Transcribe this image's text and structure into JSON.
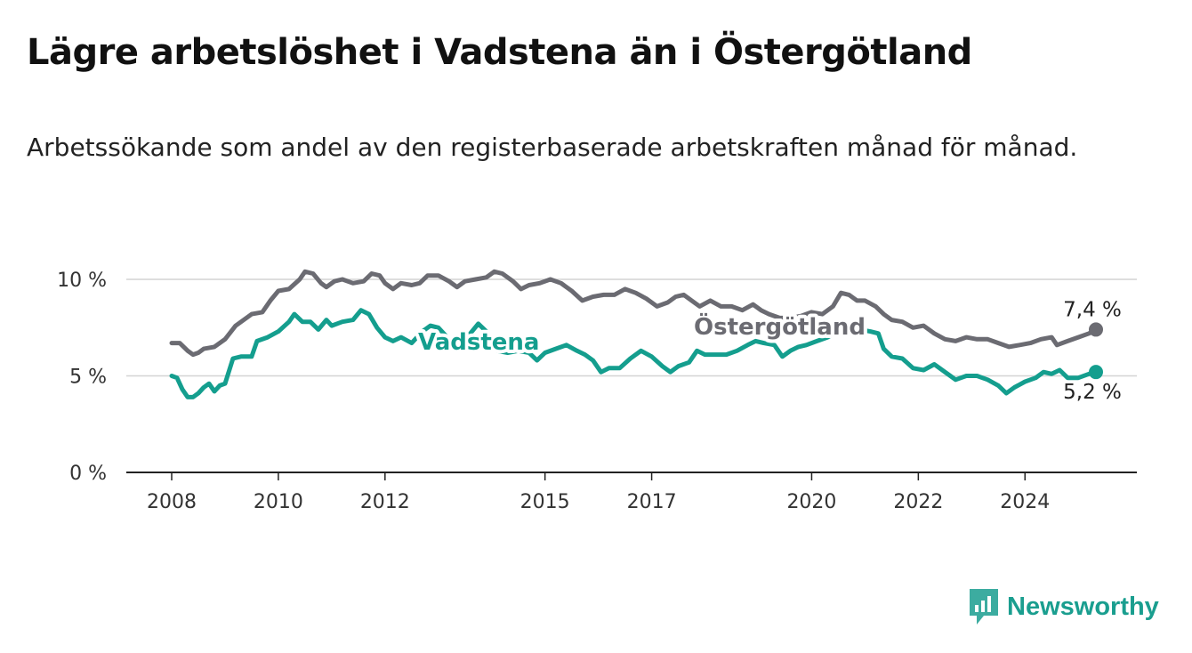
{
  "title": "Lägre arbetslöshet i Vadstena än i Östergötland",
  "subtitle": "Arbetssökande som andel av den registerbaserade arbetskraften månad för månad.",
  "brand": {
    "name": "Newsworthy",
    "icon": "newsworthy-logo-icon",
    "color": "#1a9e8f"
  },
  "chart_data": {
    "type": "line",
    "title": "Lägre arbetslöshet i Vadstena än i Östergötland",
    "xlabel": "",
    "ylabel": "",
    "x_ticks": [
      2008,
      2010,
      2012,
      2015,
      2017,
      2020,
      2022,
      2024
    ],
    "x_tick_labels": [
      "2008",
      "2010",
      "2012",
      "2015",
      "2017",
      "2020",
      "2022",
      "2024"
    ],
    "y_ticks": [
      0,
      5,
      10
    ],
    "y_tick_labels": [
      "0 %",
      "5 %",
      "10 %"
    ],
    "ylim": [
      0,
      10
    ],
    "xlim": [
      2007.6,
      2025.8
    ],
    "grid": "horizontal",
    "series": [
      {
        "name": "Östergötland",
        "color": "#6b6b72",
        "end_label": "7,4 %",
        "points": [
          [
            2008.0,
            6.7
          ],
          [
            2008.15,
            6.7
          ],
          [
            2008.3,
            6.3
          ],
          [
            2008.4,
            6.1
          ],
          [
            2008.5,
            6.2
          ],
          [
            2008.6,
            6.4
          ],
          [
            2008.8,
            6.5
          ],
          [
            2009.0,
            6.9
          ],
          [
            2009.2,
            7.6
          ],
          [
            2009.5,
            8.2
          ],
          [
            2009.7,
            8.3
          ],
          [
            2009.85,
            8.9
          ],
          [
            2010.0,
            9.4
          ],
          [
            2010.2,
            9.5
          ],
          [
            2010.4,
            10.0
          ],
          [
            2010.5,
            10.4
          ],
          [
            2010.65,
            10.3
          ],
          [
            2010.8,
            9.8
          ],
          [
            2010.9,
            9.6
          ],
          [
            2011.05,
            9.9
          ],
          [
            2011.2,
            10.0
          ],
          [
            2011.4,
            9.8
          ],
          [
            2011.6,
            9.9
          ],
          [
            2011.75,
            10.3
          ],
          [
            2011.9,
            10.2
          ],
          [
            2012.0,
            9.8
          ],
          [
            2012.15,
            9.5
          ],
          [
            2012.3,
            9.8
          ],
          [
            2012.5,
            9.7
          ],
          [
            2012.65,
            9.8
          ],
          [
            2012.8,
            10.2
          ],
          [
            2013.0,
            10.2
          ],
          [
            2013.2,
            9.9
          ],
          [
            2013.35,
            9.6
          ],
          [
            2013.5,
            9.9
          ],
          [
            2013.7,
            10.0
          ],
          [
            2013.9,
            10.1
          ],
          [
            2014.05,
            10.4
          ],
          [
            2014.2,
            10.3
          ],
          [
            2014.4,
            9.9
          ],
          [
            2014.55,
            9.5
          ],
          [
            2014.7,
            9.7
          ],
          [
            2014.9,
            9.8
          ],
          [
            2015.1,
            10.0
          ],
          [
            2015.3,
            9.8
          ],
          [
            2015.5,
            9.4
          ],
          [
            2015.7,
            8.9
          ],
          [
            2015.9,
            9.1
          ],
          [
            2016.1,
            9.2
          ],
          [
            2016.3,
            9.2
          ],
          [
            2016.5,
            9.5
          ],
          [
            2016.7,
            9.3
          ],
          [
            2016.9,
            9.0
          ],
          [
            2017.1,
            8.6
          ],
          [
            2017.3,
            8.8
          ],
          [
            2017.45,
            9.1
          ],
          [
            2017.6,
            9.2
          ],
          [
            2017.75,
            8.9
          ],
          [
            2017.9,
            8.6
          ],
          [
            2018.1,
            8.9
          ],
          [
            2018.3,
            8.6
          ],
          [
            2018.5,
            8.6
          ],
          [
            2018.7,
            8.4
          ],
          [
            2018.9,
            8.7
          ],
          [
            2019.05,
            8.4
          ],
          [
            2019.2,
            8.2
          ],
          [
            2019.4,
            8.0
          ],
          [
            2019.6,
            8.0
          ],
          [
            2019.8,
            8.1
          ],
          [
            2020.0,
            8.3
          ],
          [
            2020.2,
            8.2
          ],
          [
            2020.4,
            8.6
          ],
          [
            2020.55,
            9.3
          ],
          [
            2020.7,
            9.2
          ],
          [
            2020.85,
            8.9
          ],
          [
            2021.0,
            8.9
          ],
          [
            2021.2,
            8.6
          ],
          [
            2021.35,
            8.2
          ],
          [
            2021.5,
            7.9
          ],
          [
            2021.7,
            7.8
          ],
          [
            2021.9,
            7.5
          ],
          [
            2022.1,
            7.6
          ],
          [
            2022.3,
            7.2
          ],
          [
            2022.5,
            6.9
          ],
          [
            2022.7,
            6.8
          ],
          [
            2022.9,
            7.0
          ],
          [
            2023.1,
            6.9
          ],
          [
            2023.3,
            6.9
          ],
          [
            2023.5,
            6.7
          ],
          [
            2023.7,
            6.5
          ],
          [
            2023.9,
            6.6
          ],
          [
            2024.1,
            6.7
          ],
          [
            2024.3,
            6.9
          ],
          [
            2024.5,
            7.0
          ],
          [
            2024.6,
            6.6
          ],
          [
            2024.8,
            6.8
          ],
          [
            2025.0,
            7.0
          ],
          [
            2025.2,
            7.2
          ],
          [
            2025.33,
            7.4
          ]
        ]
      },
      {
        "name": "Vadstena",
        "color": "#149e8e",
        "end_label": "5,2 %",
        "points": [
          [
            2008.0,
            5.0
          ],
          [
            2008.1,
            4.9
          ],
          [
            2008.2,
            4.3
          ],
          [
            2008.3,
            3.9
          ],
          [
            2008.4,
            3.9
          ],
          [
            2008.5,
            4.1
          ],
          [
            2008.6,
            4.4
          ],
          [
            2008.7,
            4.6
          ],
          [
            2008.8,
            4.2
          ],
          [
            2008.9,
            4.5
          ],
          [
            2009.0,
            4.6
          ],
          [
            2009.15,
            5.9
          ],
          [
            2009.3,
            6.0
          ],
          [
            2009.5,
            6.0
          ],
          [
            2009.6,
            6.8
          ],
          [
            2009.8,
            7.0
          ],
          [
            2010.0,
            7.3
          ],
          [
            2010.2,
            7.8
          ],
          [
            2010.3,
            8.2
          ],
          [
            2010.45,
            7.8
          ],
          [
            2010.6,
            7.8
          ],
          [
            2010.75,
            7.4
          ],
          [
            2010.9,
            7.9
          ],
          [
            2011.0,
            7.6
          ],
          [
            2011.2,
            7.8
          ],
          [
            2011.4,
            7.9
          ],
          [
            2011.55,
            8.4
          ],
          [
            2011.7,
            8.2
          ],
          [
            2011.85,
            7.5
          ],
          [
            2012.0,
            7.0
          ],
          [
            2012.15,
            6.8
          ],
          [
            2012.3,
            7.0
          ],
          [
            2012.5,
            6.7
          ],
          [
            2012.7,
            7.3
          ],
          [
            2012.85,
            7.6
          ],
          [
            2013.0,
            7.5
          ],
          [
            2013.2,
            6.9
          ],
          [
            2013.4,
            6.8
          ],
          [
            2013.6,
            7.2
          ],
          [
            2013.75,
            7.7
          ],
          [
            2013.9,
            7.3
          ],
          [
            2014.1,
            6.3
          ],
          [
            2014.3,
            6.2
          ],
          [
            2014.5,
            6.3
          ],
          [
            2014.7,
            6.2
          ],
          [
            2014.85,
            5.8
          ],
          [
            2015.0,
            6.2
          ],
          [
            2015.2,
            6.4
          ],
          [
            2015.4,
            6.6
          ],
          [
            2015.6,
            6.3
          ],
          [
            2015.75,
            6.1
          ],
          [
            2015.9,
            5.8
          ],
          [
            2016.05,
            5.2
          ],
          [
            2016.2,
            5.4
          ],
          [
            2016.4,
            5.4
          ],
          [
            2016.6,
            5.9
          ],
          [
            2016.8,
            6.3
          ],
          [
            2017.0,
            6.0
          ],
          [
            2017.2,
            5.5
          ],
          [
            2017.35,
            5.2
          ],
          [
            2017.5,
            5.5
          ],
          [
            2017.7,
            5.7
          ],
          [
            2017.85,
            6.3
          ],
          [
            2018.0,
            6.1
          ],
          [
            2018.2,
            6.1
          ],
          [
            2018.4,
            6.1
          ],
          [
            2018.6,
            6.3
          ],
          [
            2018.8,
            6.6
          ],
          [
            2018.95,
            6.8
          ],
          [
            2019.1,
            6.7
          ],
          [
            2019.3,
            6.6
          ],
          [
            2019.45,
            6.0
          ],
          [
            2019.6,
            6.3
          ],
          [
            2019.75,
            6.5
          ],
          [
            2019.9,
            6.6
          ],
          [
            2020.1,
            6.8
          ],
          [
            2020.3,
            7.0
          ],
          [
            2020.5,
            7.3
          ],
          [
            2020.7,
            7.4
          ],
          [
            2020.9,
            7.4
          ],
          [
            2021.1,
            7.3
          ],
          [
            2021.25,
            7.2
          ],
          [
            2021.35,
            6.4
          ],
          [
            2021.5,
            6.0
          ],
          [
            2021.7,
            5.9
          ],
          [
            2021.9,
            5.4
          ],
          [
            2022.1,
            5.3
          ],
          [
            2022.3,
            5.6
          ],
          [
            2022.5,
            5.2
          ],
          [
            2022.7,
            4.8
          ],
          [
            2022.9,
            5.0
          ],
          [
            2023.1,
            5.0
          ],
          [
            2023.3,
            4.8
          ],
          [
            2023.5,
            4.5
          ],
          [
            2023.65,
            4.1
          ],
          [
            2023.8,
            4.4
          ],
          [
            2024.0,
            4.7
          ],
          [
            2024.2,
            4.9
          ],
          [
            2024.35,
            5.2
          ],
          [
            2024.5,
            5.1
          ],
          [
            2024.65,
            5.3
          ],
          [
            2024.8,
            4.9
          ],
          [
            2025.0,
            4.9
          ],
          [
            2025.2,
            5.1
          ],
          [
            2025.33,
            5.2
          ]
        ]
      }
    ]
  }
}
